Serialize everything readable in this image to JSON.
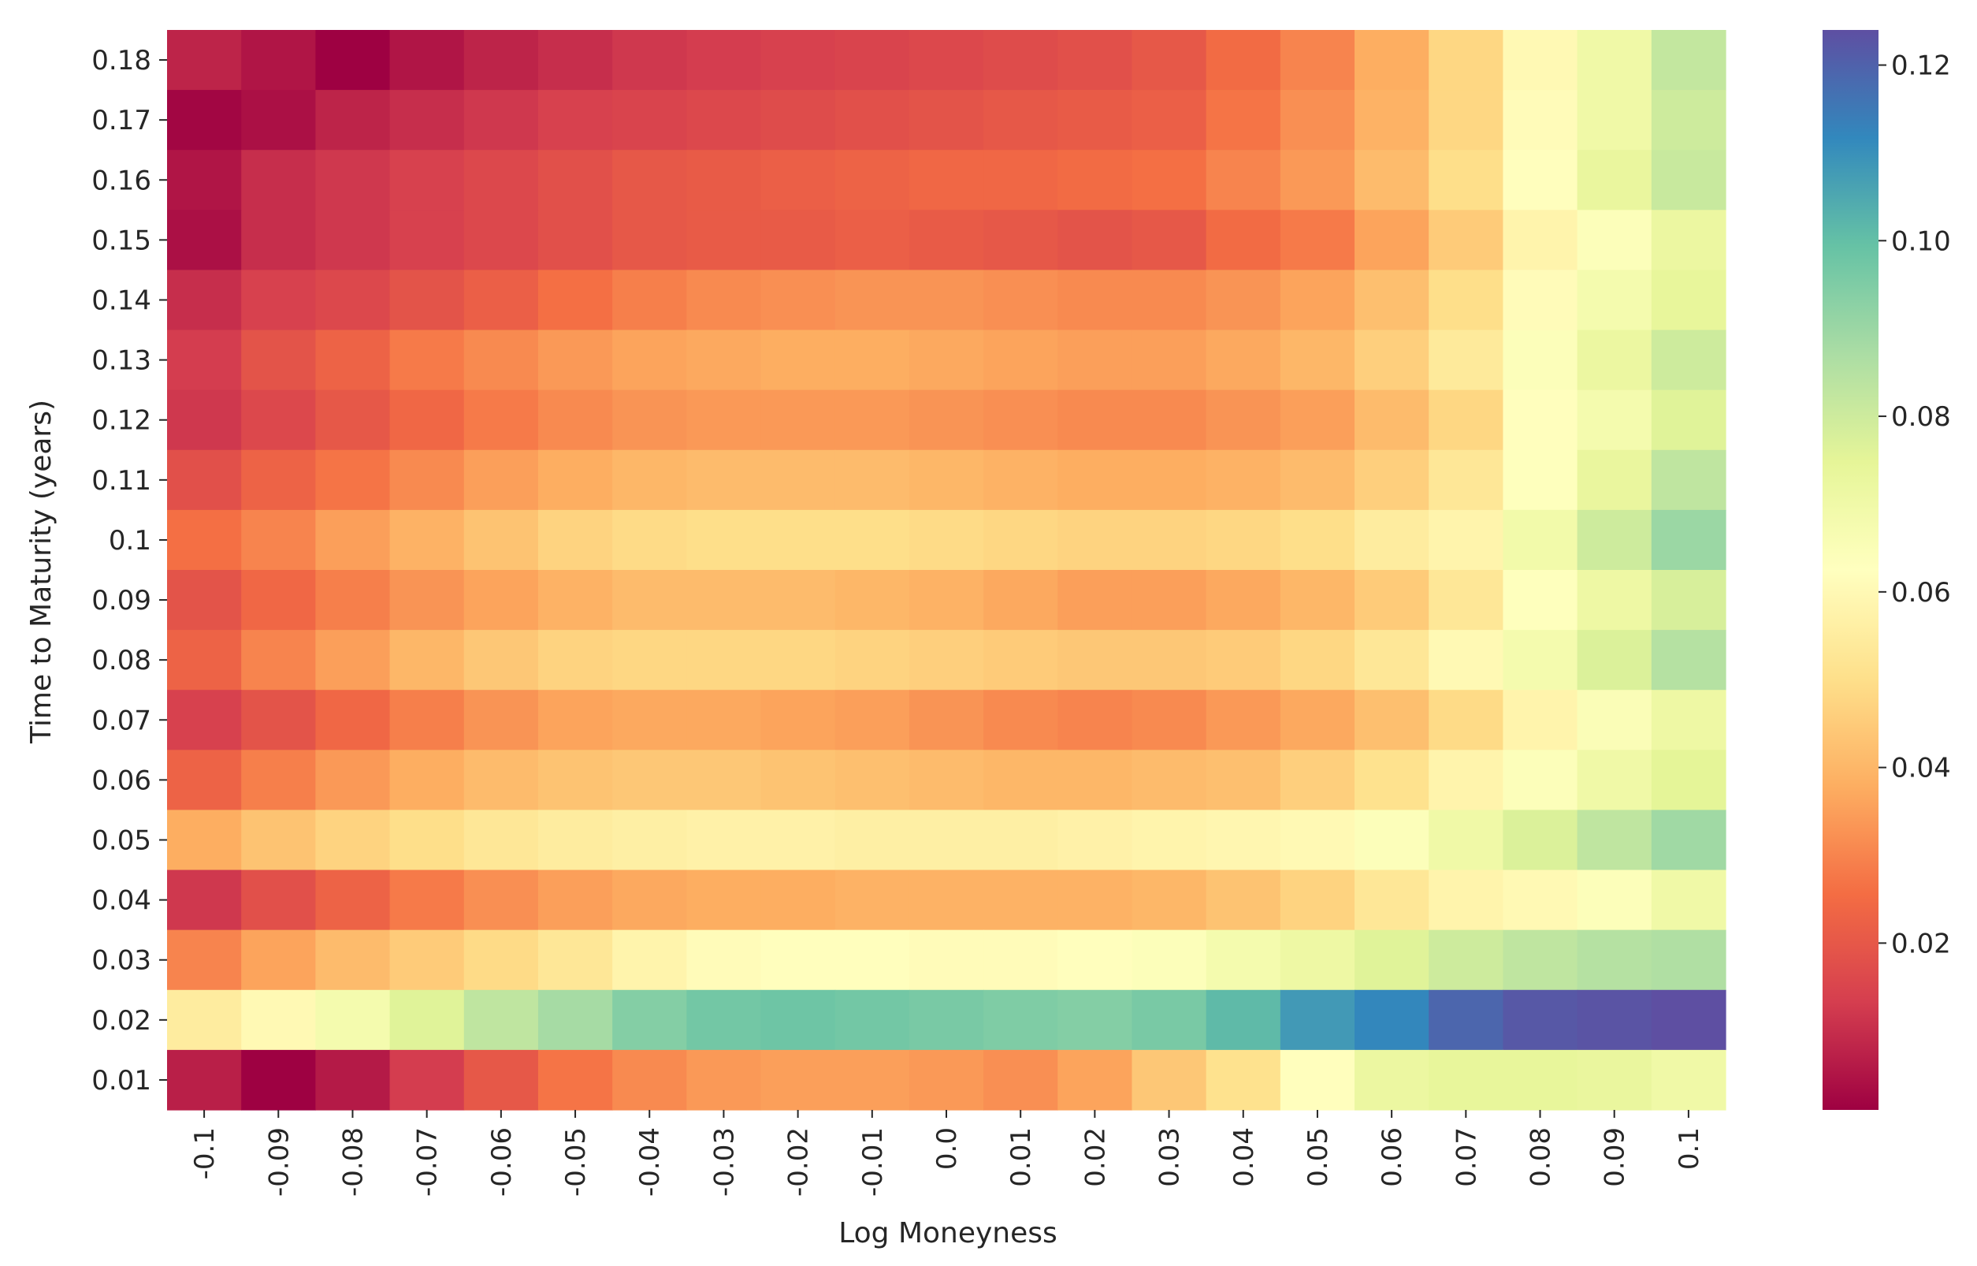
{
  "chart_data": {
    "type": "heatmap",
    "title": "",
    "xlabel": "Log Moneyness",
    "ylabel": "Time to Maturity (years)",
    "x_tick_labels": [
      "-0.1",
      "-0.09",
      "-0.08",
      "-0.07",
      "-0.06",
      "-0.05",
      "-0.04",
      "-0.03",
      "-0.02",
      "-0.01",
      "0.0",
      "0.01",
      "0.02",
      "0.03",
      "0.04",
      "0.05",
      "0.06",
      "0.07",
      "0.08",
      "0.09",
      "0.1"
    ],
    "y_tick_labels": [
      "0.18",
      "0.17",
      "0.16",
      "0.15",
      "0.14",
      "0.13",
      "0.12",
      "0.11",
      "0.1",
      "0.09",
      "0.08",
      "0.07",
      "0.06",
      "0.05",
      "0.04",
      "0.03",
      "0.02",
      "0.01"
    ],
    "colormap": "Spectral",
    "colorbar": {
      "range": [
        0.001,
        0.124
      ],
      "tick_values": [
        0.02,
        0.04,
        0.06,
        0.08,
        0.1,
        0.12
      ],
      "tick_labels": [
        "0.02",
        "0.04",
        "0.06",
        "0.08",
        "0.10",
        "0.12"
      ]
    },
    "values": [
      [
        0.008,
        0.005,
        0.001,
        0.005,
        0.008,
        0.01,
        0.012,
        0.013,
        0.014,
        0.015,
        0.016,
        0.017,
        0.018,
        0.02,
        0.025,
        0.03,
        0.038,
        0.048,
        0.06,
        0.07,
        0.082
      ],
      [
        0.002,
        0.004,
        0.008,
        0.01,
        0.012,
        0.014,
        0.015,
        0.016,
        0.017,
        0.018,
        0.019,
        0.02,
        0.021,
        0.022,
        0.027,
        0.032,
        0.039,
        0.048,
        0.061,
        0.07,
        0.08
      ],
      [
        0.005,
        0.01,
        0.012,
        0.014,
        0.016,
        0.018,
        0.02,
        0.021,
        0.022,
        0.023,
        0.024,
        0.024,
        0.025,
        0.026,
        0.03,
        0.034,
        0.041,
        0.05,
        0.062,
        0.073,
        0.081
      ],
      [
        0.004,
        0.01,
        0.012,
        0.014,
        0.016,
        0.018,
        0.02,
        0.021,
        0.021,
        0.022,
        0.021,
        0.02,
        0.019,
        0.02,
        0.025,
        0.028,
        0.036,
        0.045,
        0.058,
        0.064,
        0.072
      ],
      [
        0.01,
        0.014,
        0.016,
        0.019,
        0.022,
        0.026,
        0.029,
        0.031,
        0.032,
        0.033,
        0.033,
        0.032,
        0.031,
        0.031,
        0.033,
        0.036,
        0.042,
        0.05,
        0.061,
        0.068,
        0.074
      ],
      [
        0.013,
        0.019,
        0.023,
        0.028,
        0.031,
        0.034,
        0.036,
        0.037,
        0.038,
        0.038,
        0.037,
        0.036,
        0.035,
        0.035,
        0.037,
        0.04,
        0.046,
        0.054,
        0.064,
        0.072,
        0.08
      ],
      [
        0.012,
        0.016,
        0.02,
        0.024,
        0.028,
        0.031,
        0.033,
        0.034,
        0.034,
        0.034,
        0.033,
        0.032,
        0.031,
        0.031,
        0.033,
        0.035,
        0.041,
        0.048,
        0.062,
        0.068,
        0.076
      ],
      [
        0.018,
        0.023,
        0.027,
        0.031,
        0.035,
        0.038,
        0.04,
        0.041,
        0.041,
        0.041,
        0.04,
        0.039,
        0.038,
        0.038,
        0.039,
        0.041,
        0.046,
        0.053,
        0.063,
        0.073,
        0.083
      ],
      [
        0.026,
        0.03,
        0.035,
        0.039,
        0.043,
        0.047,
        0.049,
        0.05,
        0.05,
        0.05,
        0.049,
        0.048,
        0.047,
        0.047,
        0.048,
        0.05,
        0.055,
        0.058,
        0.069,
        0.08,
        0.09
      ],
      [
        0.019,
        0.024,
        0.029,
        0.033,
        0.036,
        0.039,
        0.041,
        0.041,
        0.041,
        0.04,
        0.039,
        0.037,
        0.035,
        0.035,
        0.037,
        0.04,
        0.045,
        0.053,
        0.063,
        0.071,
        0.078
      ],
      [
        0.023,
        0.03,
        0.035,
        0.04,
        0.044,
        0.047,
        0.048,
        0.048,
        0.048,
        0.047,
        0.046,
        0.045,
        0.044,
        0.044,
        0.045,
        0.048,
        0.053,
        0.06,
        0.068,
        0.077,
        0.085
      ],
      [
        0.014,
        0.019,
        0.024,
        0.029,
        0.033,
        0.036,
        0.037,
        0.037,
        0.036,
        0.035,
        0.033,
        0.031,
        0.03,
        0.031,
        0.034,
        0.037,
        0.042,
        0.049,
        0.058,
        0.065,
        0.071
      ],
      [
        0.023,
        0.029,
        0.034,
        0.038,
        0.041,
        0.043,
        0.044,
        0.044,
        0.043,
        0.042,
        0.041,
        0.04,
        0.04,
        0.041,
        0.042,
        0.046,
        0.051,
        0.058,
        0.064,
        0.07,
        0.075
      ],
      [
        0.038,
        0.043,
        0.047,
        0.05,
        0.053,
        0.055,
        0.056,
        0.057,
        0.057,
        0.056,
        0.056,
        0.056,
        0.057,
        0.058,
        0.059,
        0.06,
        0.064,
        0.07,
        0.077,
        0.083,
        0.089
      ],
      [
        0.012,
        0.018,
        0.023,
        0.028,
        0.032,
        0.035,
        0.037,
        0.038,
        0.038,
        0.039,
        0.039,
        0.039,
        0.039,
        0.04,
        0.043,
        0.047,
        0.053,
        0.058,
        0.06,
        0.064,
        0.07
      ],
      [
        0.03,
        0.036,
        0.041,
        0.045,
        0.049,
        0.053,
        0.058,
        0.061,
        0.062,
        0.062,
        0.061,
        0.061,
        0.062,
        0.064,
        0.068,
        0.071,
        0.076,
        0.08,
        0.083,
        0.085,
        0.086
      ],
      [
        0.055,
        0.06,
        0.068,
        0.076,
        0.083,
        0.088,
        0.094,
        0.097,
        0.098,
        0.097,
        0.096,
        0.095,
        0.094,
        0.096,
        0.101,
        0.108,
        0.112,
        0.119,
        0.122,
        0.123,
        0.124
      ],
      [
        0.007,
        0.001,
        0.006,
        0.013,
        0.02,
        0.027,
        0.031,
        0.034,
        0.035,
        0.035,
        0.034,
        0.032,
        0.036,
        0.044,
        0.051,
        0.062,
        0.072,
        0.074,
        0.074,
        0.073,
        0.07
      ]
    ]
  }
}
